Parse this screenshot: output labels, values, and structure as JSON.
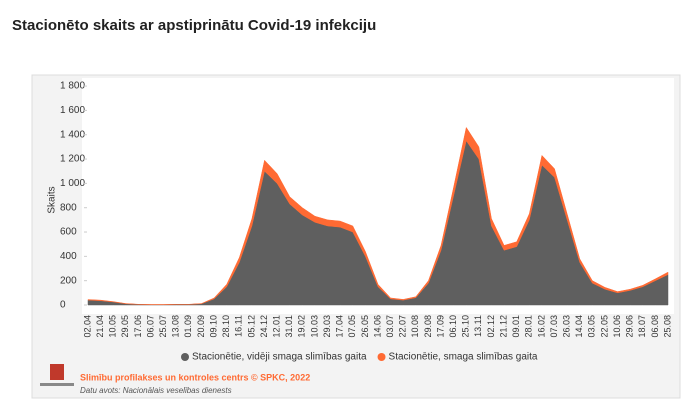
{
  "chart_data": {
    "type": "stacked-area",
    "title": "Stacionēto skaits ar apstiprinātu Covid-19 infekciju",
    "y_label": "Skaits",
    "categories": [
      "02.04",
      "21.04",
      "10.05",
      "29.05",
      "17.06",
      "06.07",
      "25.07",
      "13.08",
      "01.09",
      "20.09",
      "09.10",
      "28.10",
      "16.11",
      "05.12",
      "24.12",
      "12.01",
      "31.01",
      "19.02",
      "10.03",
      "29.03",
      "17.04",
      "07.05",
      "26.05",
      "14.06",
      "03.07",
      "22.07",
      "10.08",
      "29.08",
      "17.09",
      "06.10",
      "25.10",
      "13.11",
      "02.12",
      "21.12",
      "09.01",
      "28.01",
      "16.02",
      "07.03",
      "26.03",
      "14.04",
      "03.05",
      "22.05",
      "10.06",
      "29.06",
      "18.07",
      "06.08",
      "25.08"
    ],
    "series": [
      {
        "name": "Stacionētie, vidēji smaga slimības gaita",
        "color": "#5f5f5f",
        "values": [
          40,
          35,
          25,
          10,
          5,
          3,
          3,
          5,
          5,
          10,
          50,
          150,
          350,
          650,
          1100,
          1000,
          830,
          740,
          680,
          650,
          640,
          600,
          400,
          150,
          50,
          40,
          60,
          180,
          450,
          900,
          1350,
          1200,
          650,
          450,
          480,
          700,
          1150,
          1050,
          700,
          350,
          180,
          130,
          100,
          120,
          150,
          200,
          250
        ]
      },
      {
        "name": "Stacionētie, smaga slimības gaita",
        "color": "#ff6a33",
        "values": [
          5,
          5,
          3,
          2,
          1,
          1,
          1,
          1,
          1,
          2,
          8,
          20,
          40,
          60,
          90,
          80,
          60,
          60,
          50,
          50,
          50,
          50,
          40,
          20,
          8,
          6,
          8,
          20,
          40,
          70,
          110,
          100,
          60,
          40,
          40,
          50,
          80,
          70,
          50,
          30,
          20,
          15,
          10,
          10,
          12,
          15,
          20
        ]
      }
    ],
    "ylim": [
      0,
      1850
    ],
    "yticks": [
      0,
      200,
      400,
      600,
      800,
      {
        "value": 1000,
        "label": "1 000"
      },
      {
        "value": 1200,
        "label": "1 200"
      },
      {
        "value": 1400,
        "label": "1 400"
      },
      {
        "value": 1600,
        "label": "1 600"
      },
      {
        "value": 1800,
        "label": "1 800"
      }
    ],
    "stacked": true,
    "grid": false,
    "legend": "bottom",
    "source": "Slimību profilakses un kontroles centrs © SPKC, 2022",
    "note": "Datu avots: Nacionālais veselības dienests"
  }
}
